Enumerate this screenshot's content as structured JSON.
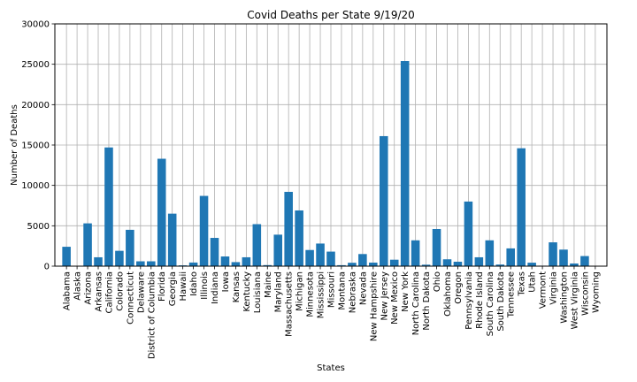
{
  "chart_data": {
    "type": "bar",
    "title": "Covid Deaths per State 9/19/20",
    "xlabel": "States",
    "ylabel": "Number of Deaths",
    "ylim": [
      0,
      30000
    ],
    "yticks": [
      0,
      5000,
      10000,
      15000,
      20000,
      25000,
      30000
    ],
    "grid": true,
    "bar_color": "#1f77b4",
    "categories": [
      "Alabama",
      "Alaska",
      "Arizona",
      "Arkansas",
      "California",
      "Colorado",
      "Connecticut",
      "Delaware",
      "District of Columbia",
      "Florida",
      "Georgia",
      "Hawaii",
      "Idaho",
      "Illinois",
      "Indiana",
      "Iowa",
      "Kansas",
      "Kentucky",
      "Louisiana",
      "Maine",
      "Maryland",
      "Massachusetts",
      "Michigan",
      "Minnesota",
      "Mississippi",
      "Missouri",
      "Montana",
      "Nebraska",
      "Nevada",
      "New Hampshire",
      "New Jersey",
      "New Mexico",
      "New York",
      "North Carolina",
      "North Dakota",
      "Ohio",
      "Oklahoma",
      "Oregon",
      "Pennsylvania",
      "Rhode Island",
      "South Carolina",
      "South Dakota",
      "Tennessee",
      "Texas",
      "Utah",
      "Vermont",
      "Virginia",
      "Washington",
      "West Virginia",
      "Wisconsin",
      "Wyoming"
    ],
    "values": [
      2400,
      50,
      5300,
      1100,
      14700,
      1900,
      4500,
      600,
      600,
      13300,
      6500,
      100,
      450,
      8700,
      3500,
      1200,
      500,
      1100,
      5200,
      130,
      3900,
      9200,
      6900,
      2000,
      2800,
      1800,
      120,
      420,
      1500,
      440,
      16100,
      800,
      25400,
      3200,
      180,
      4600,
      850,
      550,
      8000,
      1100,
      3200,
      200,
      2200,
      14600,
      430,
      60,
      2950,
      2050,
      330,
      1250,
      50
    ]
  }
}
